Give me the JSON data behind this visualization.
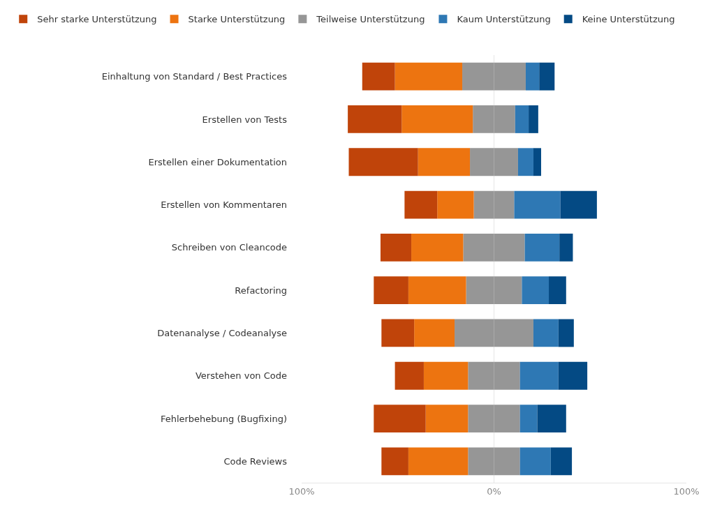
{
  "chart_data": {
    "type": "bar",
    "orientation": "horizontal",
    "stacked": true,
    "categories": [
      "Einhaltung von Standard / Best Practices",
      "Erstellen von Tests",
      "Erstellen einer Dokumentation",
      "Erstellen von Kommentaren",
      "Schreiben von Cleancode",
      "Refactoring",
      "Datenanalyse / Codeanalyse",
      "Verstehen von Code",
      "Fehlerbehebung (Bugfixing)",
      "Code Reviews"
    ],
    "series": [
      {
        "name": "Teilweise Unterstützung",
        "color": "#969696",
        "values": [
          -16.5,
          -11,
          -12.5,
          -10.5,
          -16,
          -14.5,
          -20.5,
          -13.5,
          -13.5,
          -13.5
        ]
      },
      {
        "color": "#969696",
        "values": [
          16.5,
          11,
          12.5,
          10.5,
          16,
          14.5,
          20.5,
          13.5,
          13.5,
          13.5
        ]
      },
      {
        "name": "Starke Unterstützung",
        "color": "#ed7410",
        "values": [
          -35,
          -37,
          -27,
          -19,
          -27,
          -30,
          -21,
          -23,
          -22,
          -31
        ]
      },
      {
        "name": "Sehr starke Unterstützung",
        "color": "#c0440a",
        "values": [
          -17,
          -28,
          -36,
          -17,
          -16,
          -18,
          -17,
          -15,
          -27,
          -14
        ]
      },
      {
        "name": "Kaum Unterstützung",
        "color": "#2e78b4",
        "values": [
          7,
          7,
          8,
          24,
          18,
          14,
          13,
          20,
          9,
          16
        ]
      },
      {
        "name": "Keine Unterstützung",
        "color": "#044a84",
        "values": [
          8,
          5,
          4,
          19,
          7,
          9,
          8,
          15,
          15,
          11
        ]
      }
    ],
    "xlim": [
      -100,
      100
    ],
    "xticks": [
      {
        "value": -100,
        "label": "100%"
      },
      {
        "value": 0,
        "label": "0%"
      },
      {
        "value": 100,
        "label": "100%"
      }
    ],
    "grid": "x",
    "legend": "top"
  }
}
